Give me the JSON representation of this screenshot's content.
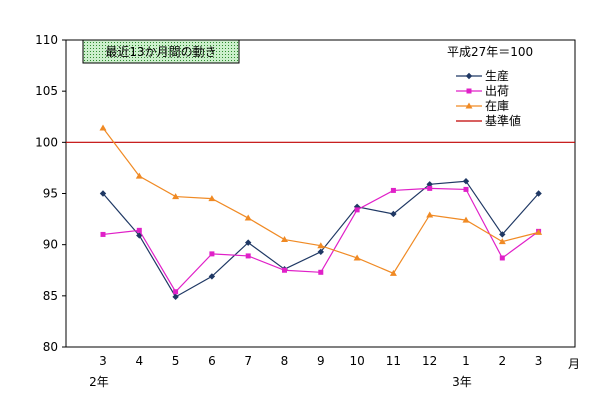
{
  "chart_data": {
    "type": "line",
    "title": "最近13か月間の動き",
    "subtitle": "平成27年＝100",
    "xlabel": "月",
    "categories": [
      "3",
      "4",
      "5",
      "6",
      "7",
      "8",
      "9",
      "10",
      "11",
      "12",
      "1",
      "2",
      "3"
    ],
    "year_labels": [
      {
        "label": "2年",
        "at_index": 0
      },
      {
        "label": "3年",
        "at_index": 10
      }
    ],
    "ylim": [
      80,
      110
    ],
    "yticks": [
      80,
      85,
      90,
      95,
      100,
      105,
      110
    ],
    "grid": false,
    "legend_position": "top-right",
    "series": [
      {
        "name": "生産",
        "color": "#1f3864",
        "marker": "diamond",
        "values": [
          95.0,
          90.9,
          84.9,
          86.9,
          90.2,
          87.6,
          89.3,
          93.7,
          93.0,
          95.9,
          96.2,
          91.0,
          95.0
        ]
      },
      {
        "name": "出荷",
        "color": "#e020c8",
        "marker": "square",
        "values": [
          91.0,
          91.4,
          85.4,
          89.1,
          88.9,
          87.5,
          87.3,
          93.4,
          95.3,
          95.5,
          95.4,
          88.7,
          91.3
        ]
      },
      {
        "name": "在庫",
        "color": "#f08a24",
        "marker": "triangle",
        "values": [
          101.4,
          96.7,
          94.7,
          94.5,
          92.6,
          90.5,
          89.9,
          88.7,
          87.2,
          92.9,
          92.4,
          90.3,
          91.2
        ]
      }
    ],
    "reference_line": {
      "name": "基準値",
      "value": 100,
      "color": "#c00000"
    }
  }
}
